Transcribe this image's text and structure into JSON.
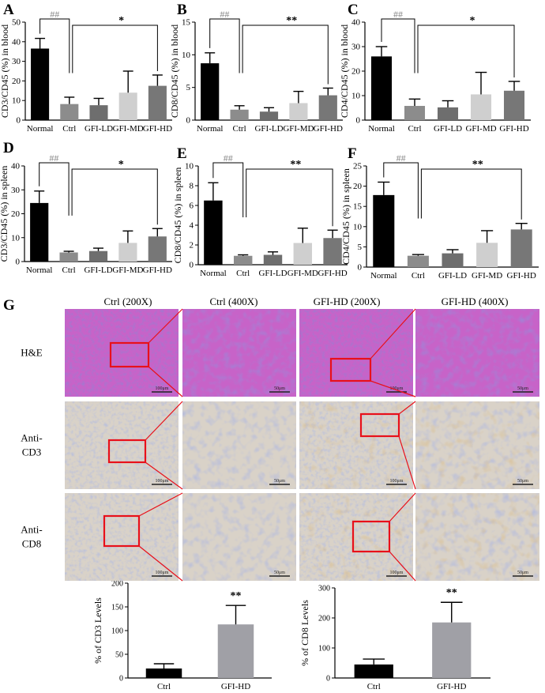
{
  "figure": {
    "panel_g_label": "G",
    "histology": {
      "columns": [
        "Ctrl (200X)",
        "Ctrl (400X)",
        "GFI-HD (200X)",
        "GFI-HD (400X)"
      ],
      "rows": [
        {
          "label_lines": [
            "H&E"
          ],
          "stain": "he"
        },
        {
          "label_lines": [
            "Anti-",
            "CD3"
          ],
          "stain": "ihc"
        },
        {
          "label_lines": [
            "Anti-",
            "CD8"
          ],
          "stain": "ihc"
        }
      ],
      "scale_bars": [
        "100μm",
        "50μm",
        "100μm",
        "50μm"
      ],
      "colors": {
        "he_base": "#c763c8",
        "he_nuclei": "#6a3aa6",
        "ihc_base": "#d9d2c8",
        "ihc_nuclei": "#7f86b8",
        "ihc_brown": "#b4874a",
        "highlight_box": "#e8101a"
      }
    },
    "bar_colors": {
      "Normal": "#000000",
      "Ctrl": "#8c8c8c",
      "GFI-LD": "#6e6e6e",
      "GFI-MD": "#cfcfcf",
      "GFI-HD": "#777777"
    }
  },
  "chart_data": [
    {
      "id": "A",
      "type": "bar",
      "categories": [
        "Normal",
        "Ctrl",
        "GFI-LD",
        "GFI-MD",
        "GFI-HD"
      ],
      "values": [
        36.5,
        8.2,
        7.6,
        14.0,
        17.5
      ],
      "errors": [
        5.2,
        3.5,
        3.5,
        11.0,
        5.5
      ],
      "ylabel": "CD3/CD45 (%) in blood",
      "ylim": [
        0,
        50
      ],
      "ticks": [
        0,
        10,
        20,
        30,
        40,
        50
      ],
      "sig": [
        {
          "label": "##",
          "from": 0,
          "to": 1
        },
        {
          "label": "*",
          "from": 1,
          "to": 4
        }
      ]
    },
    {
      "id": "B",
      "type": "bar",
      "categories": [
        "Normal",
        "Ctrl",
        "GFI-LD",
        "GFI-MD",
        "GFI-HD"
      ],
      "values": [
        8.7,
        1.6,
        1.3,
        2.6,
        3.8
      ],
      "errors": [
        1.6,
        0.6,
        0.6,
        1.8,
        1.1
      ],
      "ylabel": "CD8/CD45 (%) in blood",
      "ylim": [
        0,
        15
      ],
      "ticks": [
        0,
        5,
        10,
        15
      ],
      "sig": [
        {
          "label": "##",
          "from": 0,
          "to": 1
        },
        {
          "label": "**",
          "from": 1,
          "to": 4
        }
      ]
    },
    {
      "id": "C",
      "type": "bar",
      "categories": [
        "Normal",
        "Ctrl",
        "GFI-LD",
        "GFI-MD",
        "GFI-HD"
      ],
      "values": [
        26.0,
        5.8,
        5.2,
        10.5,
        12.0
      ],
      "errors": [
        4.0,
        2.8,
        2.7,
        9.0,
        3.8
      ],
      "ylabel": "CD4/CD45 (%) in blood",
      "ylim": [
        0,
        40
      ],
      "ticks": [
        0,
        10,
        20,
        30,
        40
      ],
      "sig": [
        {
          "label": "##",
          "from": 0,
          "to": 1
        },
        {
          "label": "*",
          "from": 1,
          "to": 4
        }
      ]
    },
    {
      "id": "D",
      "type": "bar",
      "categories": [
        "Normal",
        "Ctrl",
        "GFI-LD",
        "GFI-MD",
        "GFI-HD"
      ],
      "values": [
        24.5,
        3.8,
        4.4,
        7.8,
        10.5
      ],
      "errors": [
        5.0,
        0.5,
        1.2,
        5.0,
        3.3
      ],
      "ylabel": "CD3/CD45 (%) in spleen",
      "ylim": [
        0,
        40
      ],
      "ticks": [
        0,
        10,
        20,
        30,
        40
      ],
      "sig": [
        {
          "label": "##",
          "from": 0,
          "to": 1
        },
        {
          "label": "*",
          "from": 1,
          "to": 4
        }
      ]
    },
    {
      "id": "E",
      "type": "bar",
      "categories": [
        "Normal",
        "Ctrl",
        "GFI-LD",
        "GFI-MD",
        "GFI-HD"
      ],
      "values": [
        6.5,
        0.9,
        1.0,
        2.2,
        2.7
      ],
      "errors": [
        1.8,
        0.1,
        0.3,
        1.5,
        0.8
      ],
      "ylabel": "CD8/CD45 (%) in spleen",
      "ylim": [
        0,
        10
      ],
      "ticks": [
        0,
        2,
        4,
        6,
        8,
        10
      ],
      "sig": [
        {
          "label": "##",
          "from": 0,
          "to": 1
        },
        {
          "label": "**",
          "from": 1,
          "to": 4
        }
      ]
    },
    {
      "id": "F",
      "type": "bar",
      "categories": [
        "Normal",
        "Ctrl",
        "GFI-LD",
        "GFI-MD",
        "GFI-HD"
      ],
      "values": [
        17.8,
        2.8,
        3.4,
        6.0,
        9.3
      ],
      "errors": [
        3.2,
        0.3,
        0.9,
        3.0,
        1.5
      ],
      "ylabel": "CD4/CD45 (%) in spleen",
      "ylim": [
        0,
        25
      ],
      "ticks": [
        0,
        5,
        10,
        15,
        20,
        25
      ],
      "sig": [
        {
          "label": "##",
          "from": 0,
          "to": 1
        },
        {
          "label": "**",
          "from": 1,
          "to": 4
        }
      ]
    },
    {
      "id": "G1",
      "type": "bar",
      "categories": [
        "Ctrl",
        "GFI-HD"
      ],
      "values": [
        20,
        113
      ],
      "errors": [
        10,
        40
      ],
      "ylabel": "% of CD3 Levels",
      "ylim": [
        0,
        200
      ],
      "ticks": [
        0,
        50,
        100,
        150,
        200
      ],
      "colors": [
        "#000000",
        "#a0a0a6"
      ],
      "star": "**"
    },
    {
      "id": "G2",
      "type": "bar",
      "categories": [
        "Ctrl",
        "GFI-HD"
      ],
      "values": [
        45,
        185
      ],
      "errors": [
        18,
        67
      ],
      "ylabel": "% of CD8 Levels",
      "ylim": [
        0,
        300
      ],
      "ticks": [
        0,
        100,
        200,
        300
      ],
      "colors": [
        "#000000",
        "#a0a0a6"
      ],
      "star": "**"
    }
  ]
}
